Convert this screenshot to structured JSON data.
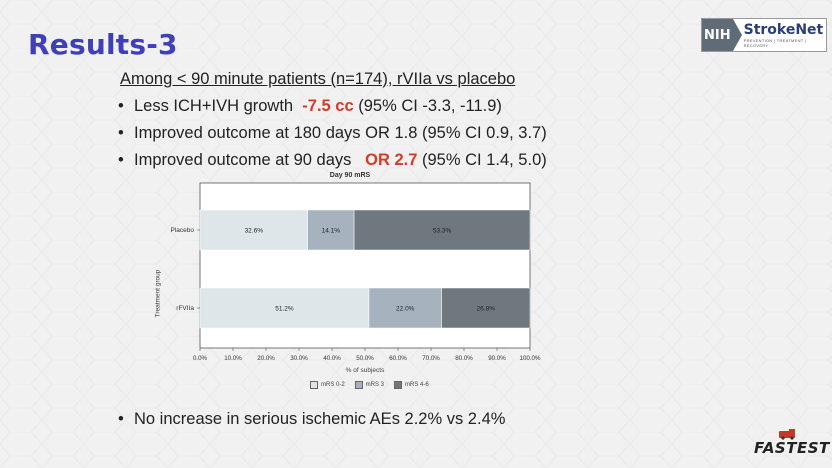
{
  "slide": {
    "title": "Results-3",
    "subhead": "Among < 90 minute patients (n=174), rVIIa vs placebo",
    "bullets": [
      {
        "pre": "Less ICH+IVH growth",
        "highlight": "-7.5 cc",
        "post": "(95% CI -3.3, -11.9)"
      },
      {
        "pre": "Improved outcome at 180 days  OR 1.8 (95% CI 0.9, 3.7)",
        "highlight": "",
        "post": ""
      },
      {
        "pre": "Improved outcome at 90 days",
        "highlight": "OR 2.7",
        "post": "(95% CI 1.4, 5.0)"
      }
    ],
    "bottom_bullet": "No increase in serious ischemic AEs 2.2% vs 2.4%",
    "accent_color": "#3f3fb8",
    "highlight_color": "#d63a2a"
  },
  "logo": {
    "nih": "NIH",
    "name": "StrokeNet",
    "tagline": "PREVENTION | TREATMENT | RECOVERY"
  },
  "footer_logo": "FASTEST",
  "chart_data": {
    "type": "bar",
    "orientation": "horizontal-stacked",
    "title": "Day 90 mRS",
    "xlabel": "% of subjects",
    "ylabel": "Treatment group",
    "categories": [
      "Placebo",
      "rFVIIa"
    ],
    "series": [
      {
        "name": "mRS 0-2",
        "values": [
          32.6,
          51.2
        ],
        "labels": [
          "32.6%",
          "51.2%"
        ],
        "color": "#dfe6ea"
      },
      {
        "name": "mRS 3",
        "values": [
          14.1,
          22.0
        ],
        "labels": [
          "14.1%",
          "22.0%"
        ],
        "color": "#a6b3bf"
      },
      {
        "name": "mRS 4-6",
        "values": [
          53.3,
          26.8
        ],
        "labels": [
          "53.3%",
          "26.8%"
        ],
        "color": "#6f787f"
      }
    ],
    "xlim": [
      0,
      100
    ],
    "xticks": [
      "0.0%",
      "10.0%",
      "20.0%",
      "30.0%",
      "40.0%",
      "50.0%",
      "60.0%",
      "70.0%",
      "80.0%",
      "90.0%",
      "100.0%"
    ],
    "legend_position": "bottom",
    "grid": false
  }
}
